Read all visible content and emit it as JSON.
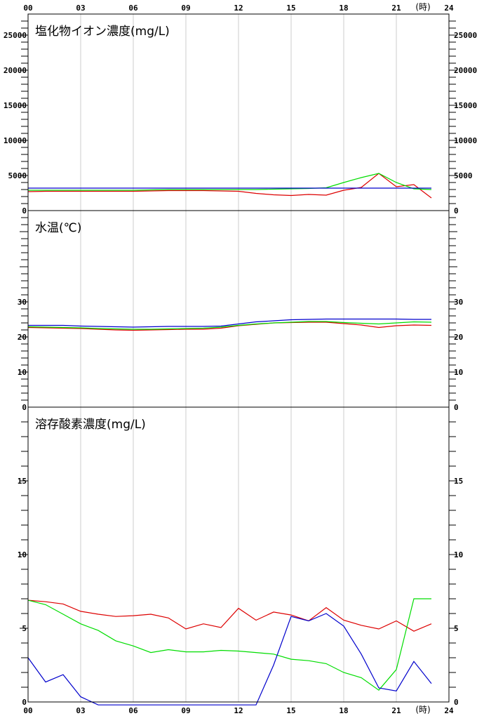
{
  "x_axis": {
    "labels": [
      "00",
      "03",
      "06",
      "09",
      "12",
      "15",
      "18",
      "21",
      "24"
    ],
    "unit": "(時)"
  },
  "colors": {
    "red": "#dd0000",
    "green": "#00dd00",
    "blue": "#0000cc",
    "grid": "#cccccc"
  },
  "chart_data": [
    {
      "type": "line",
      "title": "塩化物イオン濃度(mg/L)",
      "xlabel": "(時)",
      "x": [
        0,
        1,
        2,
        3,
        4,
        5,
        6,
        7,
        8,
        9,
        10,
        11,
        12,
        13,
        14,
        15,
        16,
        17,
        18,
        19,
        20,
        21,
        22,
        23
      ],
      "ylim": [
        0,
        28000
      ],
      "yticks": [
        "0",
        "5000",
        "10000",
        "15000",
        "20000",
        "25000"
      ],
      "series": [
        {
          "color": "#dd0000",
          "values": [
            2700,
            2750,
            2750,
            2750,
            2750,
            2750,
            2750,
            2800,
            2850,
            2850,
            2850,
            2800,
            2750,
            2450,
            2250,
            2150,
            2300,
            2200,
            2900,
            3300,
            5300,
            3400,
            3700,
            1800
          ]
        },
        {
          "color": "#00dd00",
          "values": [
            2900,
            2900,
            2900,
            2900,
            2900,
            2900,
            2900,
            2950,
            3000,
            3000,
            3000,
            3000,
            3000,
            3000,
            3050,
            3100,
            3150,
            3250,
            4000,
            4700,
            5300,
            4000,
            3100,
            3000
          ]
        },
        {
          "color": "#0000cc",
          "values": [
            3200,
            3200,
            3200,
            3200,
            3200,
            3200,
            3200,
            3200,
            3200,
            3200,
            3200,
            3200,
            3200,
            3200,
            3200,
            3200,
            3200,
            3200,
            3200,
            3200,
            3200,
            3200,
            3200,
            3200
          ]
        }
      ]
    },
    {
      "type": "line",
      "title": "水温(℃)",
      "xlabel": "(時)",
      "x": [
        0,
        1,
        2,
        3,
        4,
        5,
        6,
        7,
        8,
        9,
        10,
        11,
        12,
        13,
        14,
        15,
        16,
        17,
        18,
        19,
        20,
        21,
        22,
        23
      ],
      "ylim": [
        0,
        56
      ],
      "yticks": [
        "0",
        "10",
        "20",
        "30"
      ],
      "series": [
        {
          "color": "#dd0000",
          "values": [
            22.7,
            22.6,
            22.5,
            22.4,
            22.2,
            22.0,
            21.9,
            22.0,
            22.1,
            22.2,
            22.2,
            22.5,
            23.2,
            23.6,
            24.0,
            24.1,
            24.2,
            24.2,
            23.8,
            23.4,
            22.7,
            23.2,
            23.4,
            23.3
          ]
        },
        {
          "color": "#00dd00",
          "values": [
            22.9,
            22.8,
            22.7,
            22.6,
            22.4,
            22.3,
            22.2,
            22.2,
            22.3,
            22.4,
            22.5,
            22.8,
            23.3,
            23.7,
            24.0,
            24.2,
            24.4,
            24.4,
            24.1,
            23.9,
            23.7,
            24.0,
            24.3,
            24.2
          ]
        },
        {
          "color": "#0000cc",
          "values": [
            23.3,
            23.3,
            23.3,
            23.1,
            23.0,
            22.9,
            22.8,
            22.9,
            23.0,
            23.0,
            23.0,
            23.1,
            23.7,
            24.3,
            24.6,
            24.9,
            25.0,
            25.1,
            25.1,
            25.1,
            25.1,
            25.1,
            25.0,
            25.0
          ]
        }
      ]
    },
    {
      "type": "line",
      "title": "溶存酸素濃度(mg/L)",
      "xlabel": "(時)",
      "x": [
        0,
        1,
        2,
        3,
        4,
        5,
        6,
        7,
        8,
        9,
        10,
        11,
        12,
        13,
        14,
        15,
        16,
        17,
        18,
        19,
        20,
        21,
        22,
        23,
        24
      ],
      "ylim": [
        0,
        20
      ],
      "yticks": [
        "0",
        "5",
        "10",
        "15"
      ],
      "series": [
        {
          "color": "#dd0000",
          "values": [
            6.9,
            6.8,
            6.65,
            6.15,
            5.95,
            5.8,
            5.85,
            5.95,
            5.7,
            4.95,
            5.3,
            5.05,
            6.35,
            5.55,
            6.1,
            5.9,
            5.5,
            6.4,
            5.55,
            5.2,
            4.95,
            5.5,
            4.8,
            5.3,
            null
          ]
        },
        {
          "color": "#00dd00",
          "values": [
            6.9,
            6.6,
            5.95,
            5.3,
            4.85,
            4.15,
            3.8,
            3.35,
            3.55,
            3.4,
            3.4,
            3.5,
            3.45,
            3.35,
            3.25,
            2.9,
            2.8,
            2.6,
            2.0,
            1.65,
            0.8,
            2.2,
            7.0,
            7.0,
            null
          ]
        },
        {
          "color": "#0000cc",
          "values": [
            3.0,
            1.35,
            1.85,
            0.35,
            -0.2,
            -0.2,
            -0.2,
            -0.2,
            -0.2,
            -0.2,
            -0.2,
            -0.2,
            -0.2,
            -0.2,
            2.5,
            5.8,
            5.5,
            6.0,
            5.15,
            3.25,
            0.95,
            0.75,
            2.75,
            1.25,
            null
          ]
        }
      ]
    }
  ]
}
